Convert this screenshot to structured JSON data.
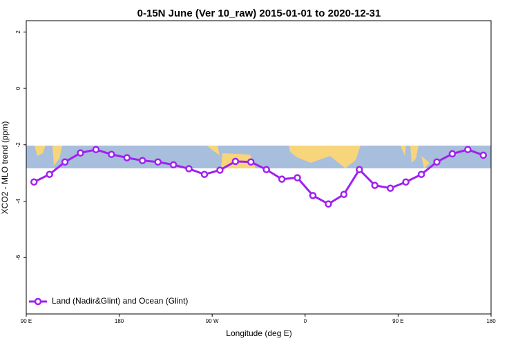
{
  "chart_data": {
    "type": "line",
    "title": "0-15N June (Ver 10_raw)   2015-01-01 to 2020-12-31",
    "x_label": "Longitude (deg E)",
    "y_label": "XCO2 - MLO trend (ppm)",
    "x": [
      97.5,
      112.5,
      127.5,
      142.5,
      157.5,
      172.5,
      187.5,
      202.5,
      217.5,
      232.5,
      247.5,
      262.5,
      277.5,
      292.5,
      307.5,
      322.5,
      337.5,
      352.5,
      367.5,
      382.5,
      397.5,
      412.5,
      427.5,
      442.5,
      457.5,
      472.5,
      487.5,
      502.5,
      517.5,
      532.5
    ],
    "series": [
      {
        "name": "Land (Nadir&Glint) and Ocean (Glint)",
        "color": "#a020f0",
        "values": [
          -3.32,
          -3.05,
          -2.61,
          -2.29,
          -2.17,
          -2.34,
          -2.46,
          -2.56,
          -2.61,
          -2.71,
          -2.85,
          -3.05,
          -2.9,
          -2.59,
          -2.61,
          -2.88,
          -3.22,
          -3.17,
          -3.8,
          -4.1,
          -3.76,
          -2.88,
          -3.44,
          -3.54,
          -3.32,
          -3.05,
          -2.61,
          -2.32,
          -2.17,
          -2.37
        ]
      }
    ],
    "xlim": [
      90,
      540
    ],
    "xticks": [
      {
        "value": 90,
        "label": "90 E"
      },
      {
        "value": 180,
        "label": "180"
      },
      {
        "value": 270,
        "label": "90 W"
      },
      {
        "value": 360,
        "label": "0"
      },
      {
        "value": 450,
        "label": "90 E"
      },
      {
        "value": 540,
        "label": "180"
      }
    ],
    "ylim": [
      -8,
      2.4
    ],
    "yticks": [
      -6,
      -4,
      -2,
      0,
      2
    ],
    "legend": "bottom-left"
  }
}
